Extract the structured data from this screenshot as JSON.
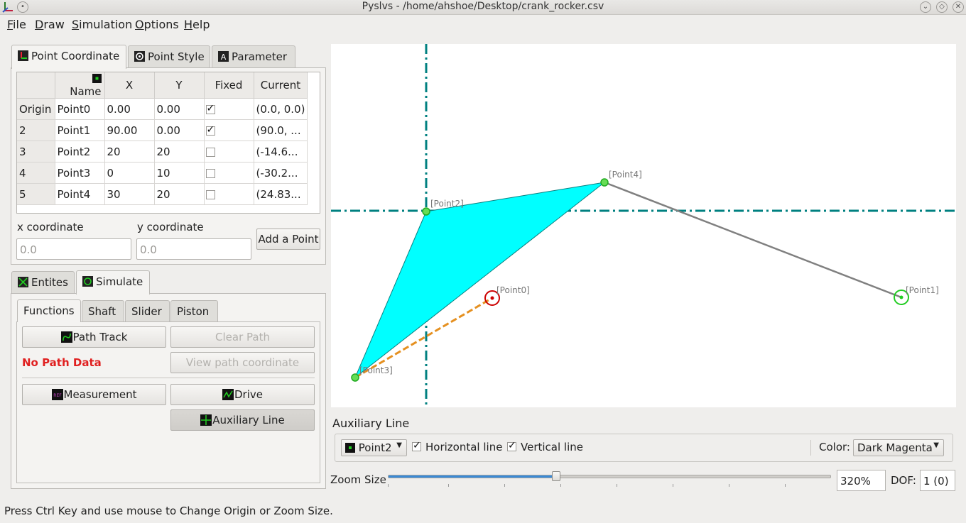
{
  "window": {
    "title": "Pyslvs - /home/ahshoe/Desktop/crank_rocker.csv"
  },
  "menu": [
    "File",
    "Draw",
    "Simulation",
    "Options",
    "Help"
  ],
  "top_tabs": [
    "Point Coordinate",
    "Point Style",
    "Parameter"
  ],
  "points_table": {
    "headers": [
      "Name",
      "X",
      "Y",
      "Fixed",
      "Current"
    ],
    "rows": [
      {
        "hdr": "Origin",
        "name": "Point0",
        "x": "0.00",
        "y": "0.00",
        "fixed": true,
        "current": "(0.0, 0.0)"
      },
      {
        "hdr": "2",
        "name": "Point1",
        "x": "90.00",
        "y": "0.00",
        "fixed": true,
        "current": "(90.0, ..."
      },
      {
        "hdr": "3",
        "name": "Point2",
        "x": "20",
        "y": "20",
        "fixed": false,
        "current": "(-14.6..."
      },
      {
        "hdr": "4",
        "name": "Point3",
        "x": "0",
        "y": "10",
        "fixed": false,
        "current": "(-30.2..."
      },
      {
        "hdr": "5",
        "name": "Point4",
        "x": "30",
        "y": "20",
        "fixed": false,
        "current": "(24.83..."
      }
    ]
  },
  "coord_input": {
    "x_label": "x coordinate",
    "y_label": "y coordinate",
    "x_placeholder": "0.0",
    "y_placeholder": "0.0",
    "add_button": "Add a Point"
  },
  "bottom_tabs": [
    "Entites",
    "Simulate"
  ],
  "sim_tabs": [
    "Functions",
    "Shaft",
    "Slider",
    "Piston"
  ],
  "functions": {
    "path_track": "Path Track",
    "clear_path": "Clear Path",
    "no_path": "No Path Data",
    "view_path": "View path coordinate",
    "measurement": "Measurement",
    "drive": "Drive",
    "auxiliary_line": "Auxiliary Line"
  },
  "canvas": {
    "labels": [
      "[Point0]",
      "[Point1]",
      "[Point2]",
      "[Point3]",
      "[Point4]"
    ],
    "colors": {
      "link": "#808080",
      "triangle": "#00ffff",
      "aux": "#008080",
      "path": "#e59020",
      "ground": "#cc0000",
      "joint": "#22cc22"
    }
  },
  "aux": {
    "title": "Auxiliary Line",
    "point": "Point2",
    "horizontal": "Horizontal line",
    "vertical": "Vertical line",
    "color_label": "Color:",
    "color_value": "Dark Magenta"
  },
  "zoom": {
    "label": "Zoom Size",
    "value": "320%",
    "level_fraction": 0.38,
    "dof_label": "DOF:",
    "dof_value": "1 (0)"
  },
  "status": "Press Ctrl Key and use mouse to Change Origin or Zoom Size."
}
